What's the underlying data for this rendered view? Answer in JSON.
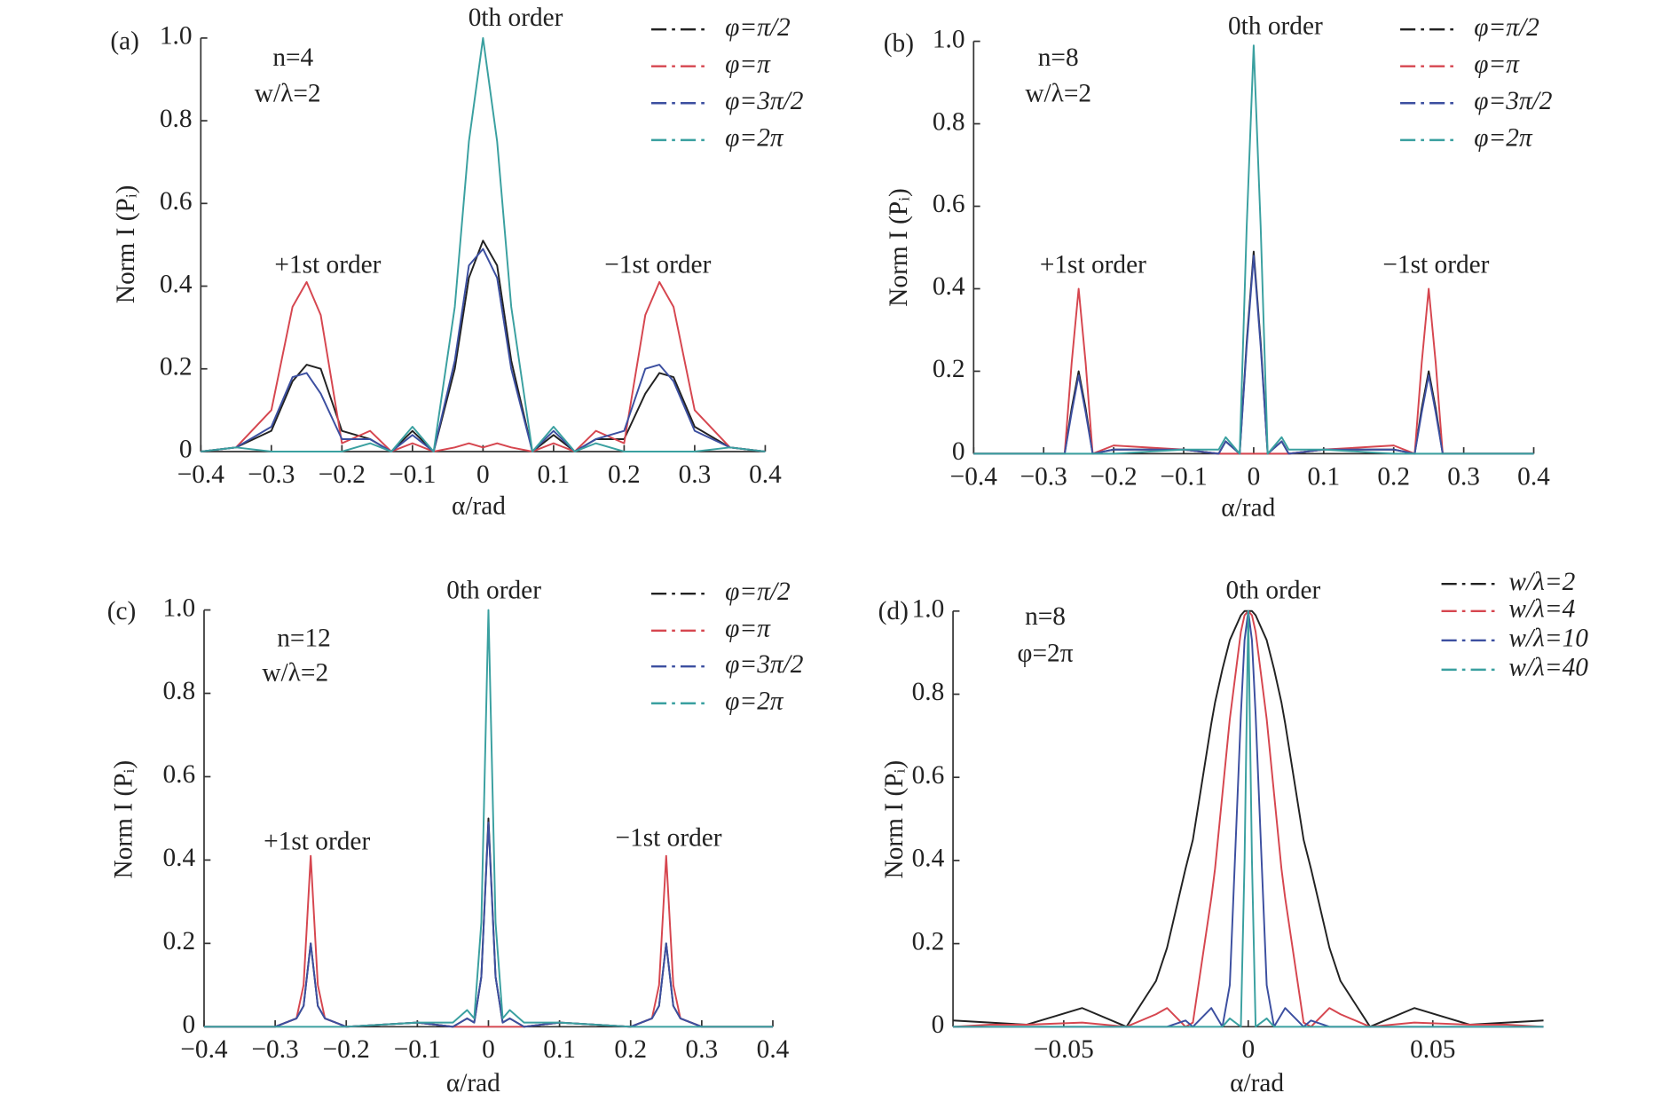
{
  "chart_data": [
    {
      "type": "line",
      "xlabel": "α/rad",
      "ylabel": "Norm I (Pᵢ)",
      "annotations": [
        "(a)",
        "n=4",
        "w/λ=2",
        "0th order",
        "+1st order",
        "−1st order"
      ],
      "legend": "upper right",
      "x": [
        -0.4,
        -0.35,
        -0.3,
        -0.27,
        -0.25,
        -0.23,
        -0.2,
        -0.16,
        -0.13,
        -0.1,
        -0.07,
        -0.04,
        -0.02,
        0,
        0.02,
        0.04,
        0.07,
        0.1,
        0.13,
        0.16,
        0.2,
        0.23,
        0.25,
        0.27,
        0.3,
        0.35,
        0.4
      ],
      "series": [
        {
          "name": "φ=π/2",
          "color": "#222222",
          "values": [
            0,
            0.01,
            0.05,
            0.17,
            0.21,
            0.2,
            0.05,
            0.03,
            0,
            0.05,
            0,
            0.2,
            0.42,
            0.51,
            0.45,
            0.22,
            0,
            0.04,
            0,
            0.03,
            0.03,
            0.14,
            0.19,
            0.18,
            0.06,
            0.01,
            0
          ]
        },
        {
          "name": "φ=π",
          "color": "#d6464f",
          "values": [
            0,
            0.01,
            0.1,
            0.35,
            0.41,
            0.33,
            0.02,
            0.05,
            0,
            0.02,
            0,
            0.01,
            0.02,
            0.01,
            0.02,
            0.01,
            0,
            0.02,
            0,
            0.05,
            0.02,
            0.33,
            0.41,
            0.35,
            0.1,
            0.01,
            0
          ]
        },
        {
          "name": "φ=3π/2",
          "color": "#3c4fa0",
          "values": [
            0,
            0.01,
            0.06,
            0.18,
            0.19,
            0.14,
            0.03,
            0.03,
            0,
            0.04,
            0,
            0.22,
            0.45,
            0.49,
            0.42,
            0.2,
            0,
            0.05,
            0,
            0.03,
            0.05,
            0.2,
            0.21,
            0.17,
            0.05,
            0.01,
            0
          ]
        },
        {
          "name": "φ=2π",
          "color": "#3aa0a0",
          "values": [
            0,
            0.01,
            0,
            0,
            0,
            0,
            0,
            0.02,
            0,
            0.06,
            0,
            0.35,
            0.75,
            1,
            0.75,
            0.35,
            0,
            0.06,
            0,
            0.02,
            0,
            0,
            0,
            0,
            0,
            0.01,
            0
          ]
        }
      ],
      "xlim": [
        -0.4,
        0.4
      ],
      "ylim": [
        0,
        1
      ],
      "xticks": [
        {
          "value": -0.4,
          "label": "−0.4"
        },
        {
          "value": -0.3,
          "label": "−0.3"
        },
        {
          "value": -0.2,
          "label": "−0.2"
        },
        {
          "value": -0.1,
          "label": "−0.1"
        },
        0,
        0.1,
        0.2,
        0.3,
        0.4
      ],
      "yticks": [
        0,
        0.2,
        0.4,
        0.6,
        0.8,
        {
          "value": 1,
          "label": "1.0"
        }
      ]
    },
    {
      "type": "line",
      "xlabel": "α/rad",
      "ylabel": "Norm I (Pᵢ)",
      "annotations": [
        "(b)",
        "n=8",
        "w/λ=2",
        "0th order",
        "+1st order",
        "−1st order"
      ],
      "legend": "upper right",
      "x": [
        -0.4,
        -0.3,
        -0.27,
        -0.26,
        -0.25,
        -0.24,
        -0.23,
        -0.2,
        -0.1,
        -0.05,
        -0.04,
        -0.02,
        -0.01,
        0,
        0.01,
        0.02,
        0.04,
        0.05,
        0.1,
        0.2,
        0.23,
        0.24,
        0.25,
        0.26,
        0.27,
        0.3,
        0.4
      ],
      "series": [
        {
          "name": "φ=π/2",
          "color": "#222222",
          "values": [
            0,
            0,
            0,
            0.11,
            0.2,
            0.11,
            0,
            0.01,
            0.01,
            0,
            0.03,
            0,
            0.27,
            0.49,
            0.27,
            0,
            0.03,
            0,
            0.01,
            0.01,
            0,
            0.11,
            0.2,
            0.11,
            0,
            0,
            0
          ]
        },
        {
          "name": "φ=π",
          "color": "#d6464f",
          "values": [
            0,
            0,
            0,
            0.22,
            0.4,
            0.22,
            0,
            0.02,
            0.01,
            0,
            0,
            0,
            0,
            0,
            0,
            0,
            0,
            0,
            0.01,
            0.02,
            0,
            0.22,
            0.4,
            0.22,
            0,
            0,
            0
          ]
        },
        {
          "name": "φ=3π/2",
          "color": "#3c4fa0",
          "values": [
            0,
            0,
            0,
            0.1,
            0.19,
            0.1,
            0,
            0.01,
            0.01,
            0,
            0.03,
            0,
            0.26,
            0.48,
            0.26,
            0,
            0.03,
            0,
            0.01,
            0.01,
            0,
            0.1,
            0.19,
            0.1,
            0,
            0,
            0
          ]
        },
        {
          "name": "φ=2π",
          "color": "#3aa0a0",
          "values": [
            0,
            0,
            0,
            0,
            0,
            0,
            0,
            0,
            0.01,
            0.01,
            0.04,
            0,
            0.55,
            0.99,
            0.55,
            0,
            0.04,
            0.01,
            0.01,
            0,
            0,
            0,
            0,
            0,
            0,
            0,
            0
          ]
        }
      ],
      "xlim": [
        -0.4,
        0.4
      ],
      "ylim": [
        0,
        1
      ],
      "xticks": [
        {
          "value": -0.4,
          "label": "−0.4"
        },
        {
          "value": -0.3,
          "label": "−0.3"
        },
        {
          "value": -0.2,
          "label": "−0.2"
        },
        {
          "value": -0.1,
          "label": "−0.1"
        },
        0,
        0.1,
        0.2,
        0.3,
        0.4
      ],
      "yticks": [
        0,
        0.2,
        0.4,
        0.6,
        0.8,
        {
          "value": 1,
          "label": "1.0"
        }
      ]
    },
    {
      "type": "line",
      "xlabel": "α/rad",
      "ylabel": "Norm I (Pᵢ)",
      "annotations": [
        "(c)",
        "n=12",
        "w/λ=2",
        "0th order",
        "+1st order",
        "−1st order"
      ],
      "legend": "upper right",
      "x": [
        -0.4,
        -0.3,
        -0.27,
        -0.26,
        -0.25,
        -0.24,
        -0.23,
        -0.2,
        -0.1,
        -0.05,
        -0.03,
        -0.02,
        -0.01,
        0,
        0.01,
        0.02,
        0.03,
        0.05,
        0.1,
        0.2,
        0.23,
        0.24,
        0.25,
        0.26,
        0.27,
        0.3,
        0.4
      ],
      "series": [
        {
          "name": "φ=π/2",
          "color": "#222222",
          "values": [
            0,
            0,
            0.02,
            0.05,
            0.2,
            0.05,
            0.02,
            0,
            0.01,
            0,
            0.02,
            0.01,
            0.12,
            0.5,
            0.12,
            0.01,
            0.02,
            0,
            0.01,
            0,
            0.02,
            0.05,
            0.2,
            0.05,
            0.02,
            0,
            0
          ]
        },
        {
          "name": "φ=π",
          "color": "#d6464f",
          "values": [
            0,
            0,
            0.02,
            0.1,
            0.41,
            0.1,
            0.02,
            0,
            0.01,
            0,
            0,
            0,
            0,
            0,
            0,
            0,
            0,
            0,
            0.01,
            0,
            0.02,
            0.1,
            0.41,
            0.1,
            0.02,
            0,
            0
          ]
        },
        {
          "name": "φ=3π/2",
          "color": "#3c4fa0",
          "values": [
            0,
            0,
            0.02,
            0.05,
            0.2,
            0.05,
            0.02,
            0,
            0.01,
            0,
            0.02,
            0.01,
            0.12,
            0.49,
            0.12,
            0.01,
            0.02,
            0,
            0.01,
            0,
            0.02,
            0.05,
            0.2,
            0.05,
            0.02,
            0,
            0
          ]
        },
        {
          "name": "φ=2π",
          "color": "#3aa0a0",
          "values": [
            0,
            0,
            0,
            0,
            0,
            0,
            0,
            0,
            0.01,
            0.01,
            0.04,
            0.02,
            0.25,
            1,
            0.25,
            0.02,
            0.04,
            0.01,
            0.01,
            0,
            0,
            0,
            0,
            0,
            0,
            0,
            0
          ]
        }
      ],
      "xlim": [
        -0.4,
        0.4
      ],
      "ylim": [
        0,
        1
      ],
      "xticks": [
        {
          "value": -0.4,
          "label": "−0.4"
        },
        {
          "value": -0.3,
          "label": "−0.3"
        },
        {
          "value": -0.2,
          "label": "−0.2"
        },
        {
          "value": -0.1,
          "label": "−0.1"
        },
        0,
        0.1,
        0.2,
        0.3,
        0.4
      ],
      "yticks": [
        0,
        0.2,
        0.4,
        0.6,
        0.8,
        {
          "value": 1,
          "label": "1.0"
        }
      ]
    },
    {
      "type": "line",
      "xlabel": "α/rad",
      "ylabel": "Norm I (Pᵢ)",
      "annotations": [
        "(d)",
        "n=8",
        "φ=2π",
        "0th order"
      ],
      "legend": "upper right",
      "x": [
        -0.08,
        -0.07,
        -0.06,
        -0.045,
        -0.033,
        -0.025,
        -0.022,
        -0.017,
        -0.015,
        -0.01,
        -0.009,
        -0.007,
        -0.005,
        -0.002,
        -0.001,
        0,
        0.001,
        0.002,
        0.005,
        0.007,
        0.009,
        0.01,
        0.015,
        0.017,
        0.022,
        0.025,
        0.033,
        0.045,
        0.06,
        0.07,
        0.08
      ],
      "series": [
        {
          "name": "w/λ=2",
          "color": "#222222",
          "values": [
            0.015,
            0.01,
            0.005,
            0.045,
            0,
            0.11,
            0.19,
            0.38,
            0.45,
            0.73,
            0.78,
            0.86,
            0.93,
            0.99,
            1,
            1,
            1,
            0.99,
            0.93,
            0.86,
            0.78,
            0.73,
            0.45,
            0.38,
            0.19,
            0.11,
            0,
            0.045,
            0.005,
            0.01,
            0.015
          ]
        },
        {
          "name": "w/λ=4",
          "color": "#d6464f",
          "values": [
            0,
            0.005,
            0.005,
            0.01,
            0,
            0.03,
            0.045,
            0,
            0.01,
            0.31,
            0.38,
            0.56,
            0.74,
            0.95,
            0.99,
            1,
            0.99,
            0.95,
            0.74,
            0.56,
            0.38,
            0.31,
            0.01,
            0,
            0.045,
            0.03,
            0,
            0.01,
            0.005,
            0.005,
            0
          ]
        },
        {
          "name": "w/λ=10",
          "color": "#3c4fa0",
          "values": [
            0,
            0,
            0,
            0,
            0,
            0,
            0,
            0.015,
            0,
            0.045,
            0.03,
            0,
            0.1,
            0.75,
            0.93,
            1,
            0.93,
            0.75,
            0.1,
            0,
            0.03,
            0.045,
            0,
            0.015,
            0,
            0,
            0,
            0,
            0,
            0,
            0
          ]
        },
        {
          "name": "w/λ=40",
          "color": "#3aa0a0",
          "values": [
            0,
            0,
            0,
            0,
            0,
            0,
            0,
            0,
            0,
            0,
            0,
            0,
            0.02,
            0,
            0.4,
            1,
            0.4,
            0,
            0.02,
            0,
            0,
            0,
            0,
            0,
            0,
            0,
            0,
            0,
            0,
            0,
            0
          ]
        }
      ],
      "xlim": [
        -0.08,
        0.08
      ],
      "ylim": [
        0,
        1
      ],
      "xticks": [
        {
          "value": -0.05,
          "label": "−0.05"
        },
        0,
        0.05
      ],
      "yticks": [
        0,
        0.2,
        0.4,
        0.6,
        0.8,
        {
          "value": 1,
          "label": "1.0"
        }
      ]
    }
  ]
}
